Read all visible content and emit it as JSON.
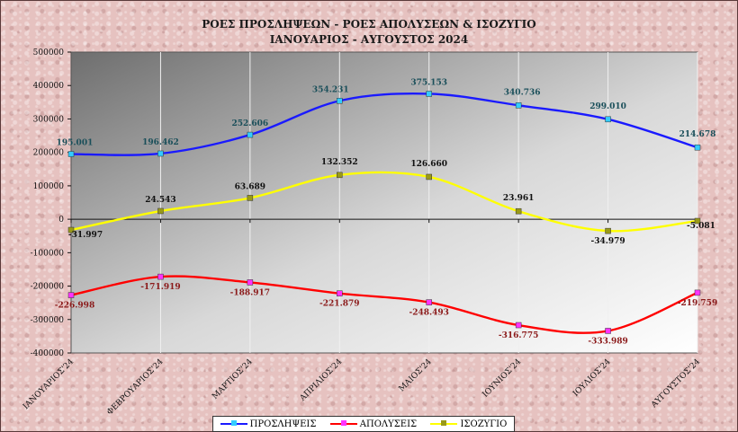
{
  "chart_data": {
    "type": "line",
    "title": "ΡΟΕΣ ΠΡΟΣΛΗΨΕΩΝ - ΡΟΕΣ ΑΠΟΛΥΣΕΩΝ & ΙΣΟΖΥΓΙΟ",
    "subtitle": "ΙΑΝΟΥΑΡΙΟΣ - ΑΥΓΟΥΣΤΟΣ 2024",
    "categories": [
      "ΙΑΝΟΥΑΡΙΟΣ'24",
      "ΦΕΒΡΟΥΑΡΙΟΣ'24",
      "ΜΑΡΤΙΟΣ'24",
      "ΑΠΡΙΛΙΟΣ'24",
      "ΜΑΙΟΣ'24",
      "ΙΟΥΝΙΟΣ'24",
      "ΙΟΥΛΙΟΣ'24",
      "ΑΥΓΟΥΣΤΟΣ'24"
    ],
    "ylim": [
      -400000,
      500000
    ],
    "yticks": [
      500000,
      400000,
      300000,
      200000,
      100000,
      0,
      -100000,
      -200000,
      -300000,
      -400000
    ],
    "ytick_labels": [
      "500000",
      "400000",
      "300000",
      "200000",
      "100000",
      "0",
      "-100000",
      "-200000",
      "-300000",
      "-400000"
    ],
    "grid": "vertical",
    "legend_position": "bottom",
    "series": [
      {
        "name": "ΠΡΟΣΛΗΨΕΙΣ",
        "color": "#1a1aff",
        "marker_color": "#33ccff",
        "label_color": "#1a4f5a",
        "values": [
          195001,
          196462,
          252606,
          354231,
          375153,
          340736,
          299010,
          214678
        ],
        "labels": [
          "195.001",
          "196.462",
          "252.606",
          "354.231",
          "375.153",
          "340.736",
          "299.010",
          "214.678"
        ]
      },
      {
        "name": "ΑΠΟΛΥΣΕΙΣ",
        "color": "#ff0000",
        "marker_color": "#ff33ff",
        "label_color": "#8b1a1a",
        "values": [
          -226998,
          -171919,
          -188917,
          -221879,
          -248493,
          -316775,
          -333989,
          -219759
        ],
        "labels": [
          "-226.998",
          "-171.919",
          "-188.917",
          "-221.879",
          "-248.493",
          "-316.775",
          "-333.989",
          "-219.759"
        ]
      },
      {
        "name": "ΙΣΟΖΥΓΙΟ",
        "color": "#ffff00",
        "marker_color": "#99991a",
        "label_color": "#111111",
        "values": [
          -31997,
          24543,
          63689,
          132352,
          126660,
          23961,
          -34979,
          -5081
        ],
        "labels": [
          "-31.997",
          "24.543",
          "63.689",
          "132.352",
          "126.660",
          "23.961",
          "-34.979",
          "-5.081"
        ]
      }
    ]
  }
}
